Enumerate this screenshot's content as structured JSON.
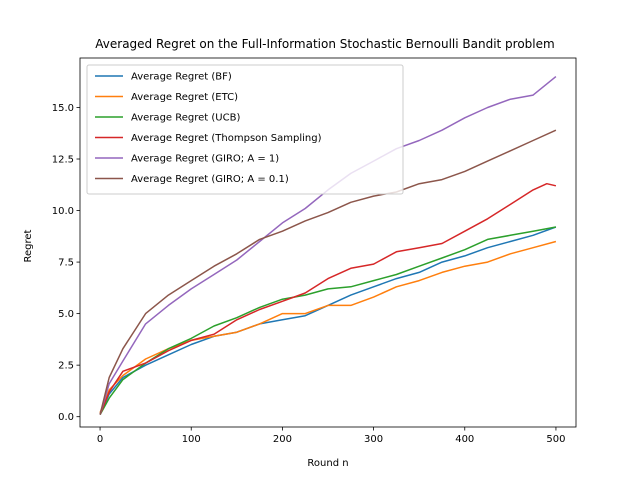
{
  "chart_data": {
    "type": "line",
    "title": "Averaged Regret on the Full-Information Stochastic Bernoulli Bandit problem",
    "xlabel": "Round n",
    "ylabel": "Regret",
    "xlim": [
      -22,
      522
    ],
    "ylim": [
      -0.5,
      17.4
    ],
    "xticks": [
      0,
      100,
      200,
      300,
      400,
      500
    ],
    "yticks": [
      0.0,
      2.5,
      5.0,
      7.5,
      10.0,
      12.5,
      15.0
    ],
    "ytick_labels": [
      "0.0",
      "2.5",
      "5.0",
      "7.5",
      "10.0",
      "12.5",
      "15.0"
    ],
    "grid": false,
    "legend_position": "top-left",
    "series": [
      {
        "name": "Average Regret (BF)",
        "color": "#1f77b4",
        "x": [
          0,
          10,
          25,
          50,
          75,
          100,
          125,
          150,
          175,
          200,
          225,
          250,
          275,
          300,
          325,
          350,
          375,
          400,
          425,
          450,
          475,
          500
        ],
        "y": [
          0.1,
          1.1,
          1.9,
          2.5,
          3.0,
          3.5,
          3.9,
          4.1,
          4.5,
          4.7,
          4.9,
          5.4,
          5.9,
          6.3,
          6.7,
          7.0,
          7.5,
          7.8,
          8.2,
          8.5,
          8.8,
          9.2
        ]
      },
      {
        "name": "Average Regret (ETC)",
        "color": "#ff7f0e",
        "x": [
          0,
          10,
          25,
          50,
          75,
          100,
          125,
          150,
          175,
          200,
          225,
          250,
          275,
          300,
          325,
          350,
          375,
          400,
          425,
          450,
          475,
          500
        ],
        "y": [
          0.2,
          1.3,
          2.0,
          2.8,
          3.3,
          3.7,
          3.9,
          4.1,
          4.5,
          5.0,
          5.0,
          5.4,
          5.4,
          5.8,
          6.3,
          6.6,
          7.0,
          7.3,
          7.5,
          7.9,
          8.2,
          8.5
        ]
      },
      {
        "name": "Average Regret (UCB)",
        "color": "#2ca02c",
        "x": [
          0,
          10,
          25,
          50,
          75,
          100,
          125,
          150,
          175,
          200,
          225,
          250,
          275,
          300,
          325,
          350,
          375,
          400,
          425,
          450,
          475,
          500
        ],
        "y": [
          0.1,
          0.9,
          1.8,
          2.6,
          3.3,
          3.8,
          4.4,
          4.8,
          5.3,
          5.7,
          5.9,
          6.2,
          6.3,
          6.6,
          6.9,
          7.3,
          7.7,
          8.1,
          8.6,
          8.8,
          9.0,
          9.2
        ]
      },
      {
        "name": "Average Regret (Thompson Sampling)",
        "color": "#d62728",
        "x": [
          0,
          10,
          25,
          50,
          75,
          100,
          125,
          150,
          175,
          200,
          225,
          250,
          275,
          300,
          325,
          350,
          375,
          400,
          425,
          450,
          475,
          490,
          500
        ],
        "y": [
          0.1,
          1.2,
          2.2,
          2.6,
          3.2,
          3.7,
          4.0,
          4.7,
          5.2,
          5.6,
          6.0,
          6.7,
          7.2,
          7.4,
          8.0,
          8.2,
          8.4,
          9.0,
          9.6,
          10.3,
          11.0,
          11.3,
          11.2
        ]
      },
      {
        "name": "Average Regret (GIRO; A = 1)",
        "color": "#9467bd",
        "x": [
          0,
          10,
          25,
          50,
          75,
          100,
          125,
          150,
          175,
          200,
          225,
          250,
          275,
          300,
          325,
          350,
          375,
          400,
          425,
          450,
          475,
          500
        ],
        "y": [
          0.1,
          1.6,
          2.7,
          4.5,
          5.4,
          6.2,
          6.9,
          7.6,
          8.5,
          9.4,
          10.1,
          11.0,
          11.8,
          12.4,
          13.0,
          13.4,
          13.9,
          14.5,
          15.0,
          15.4,
          15.6,
          16.5
        ]
      },
      {
        "name": "Average Regret (GIRO; A = 0.1)",
        "color": "#8c564b",
        "x": [
          0,
          10,
          25,
          50,
          75,
          100,
          125,
          150,
          175,
          200,
          225,
          250,
          275,
          300,
          325,
          350,
          375,
          400,
          425,
          450,
          475,
          500
        ],
        "y": [
          0.1,
          1.9,
          3.3,
          5.0,
          5.9,
          6.6,
          7.3,
          7.9,
          8.6,
          9.0,
          9.5,
          9.9,
          10.4,
          10.7,
          10.9,
          11.3,
          11.5,
          11.9,
          12.4,
          12.9,
          13.4,
          13.9
        ]
      }
    ]
  }
}
